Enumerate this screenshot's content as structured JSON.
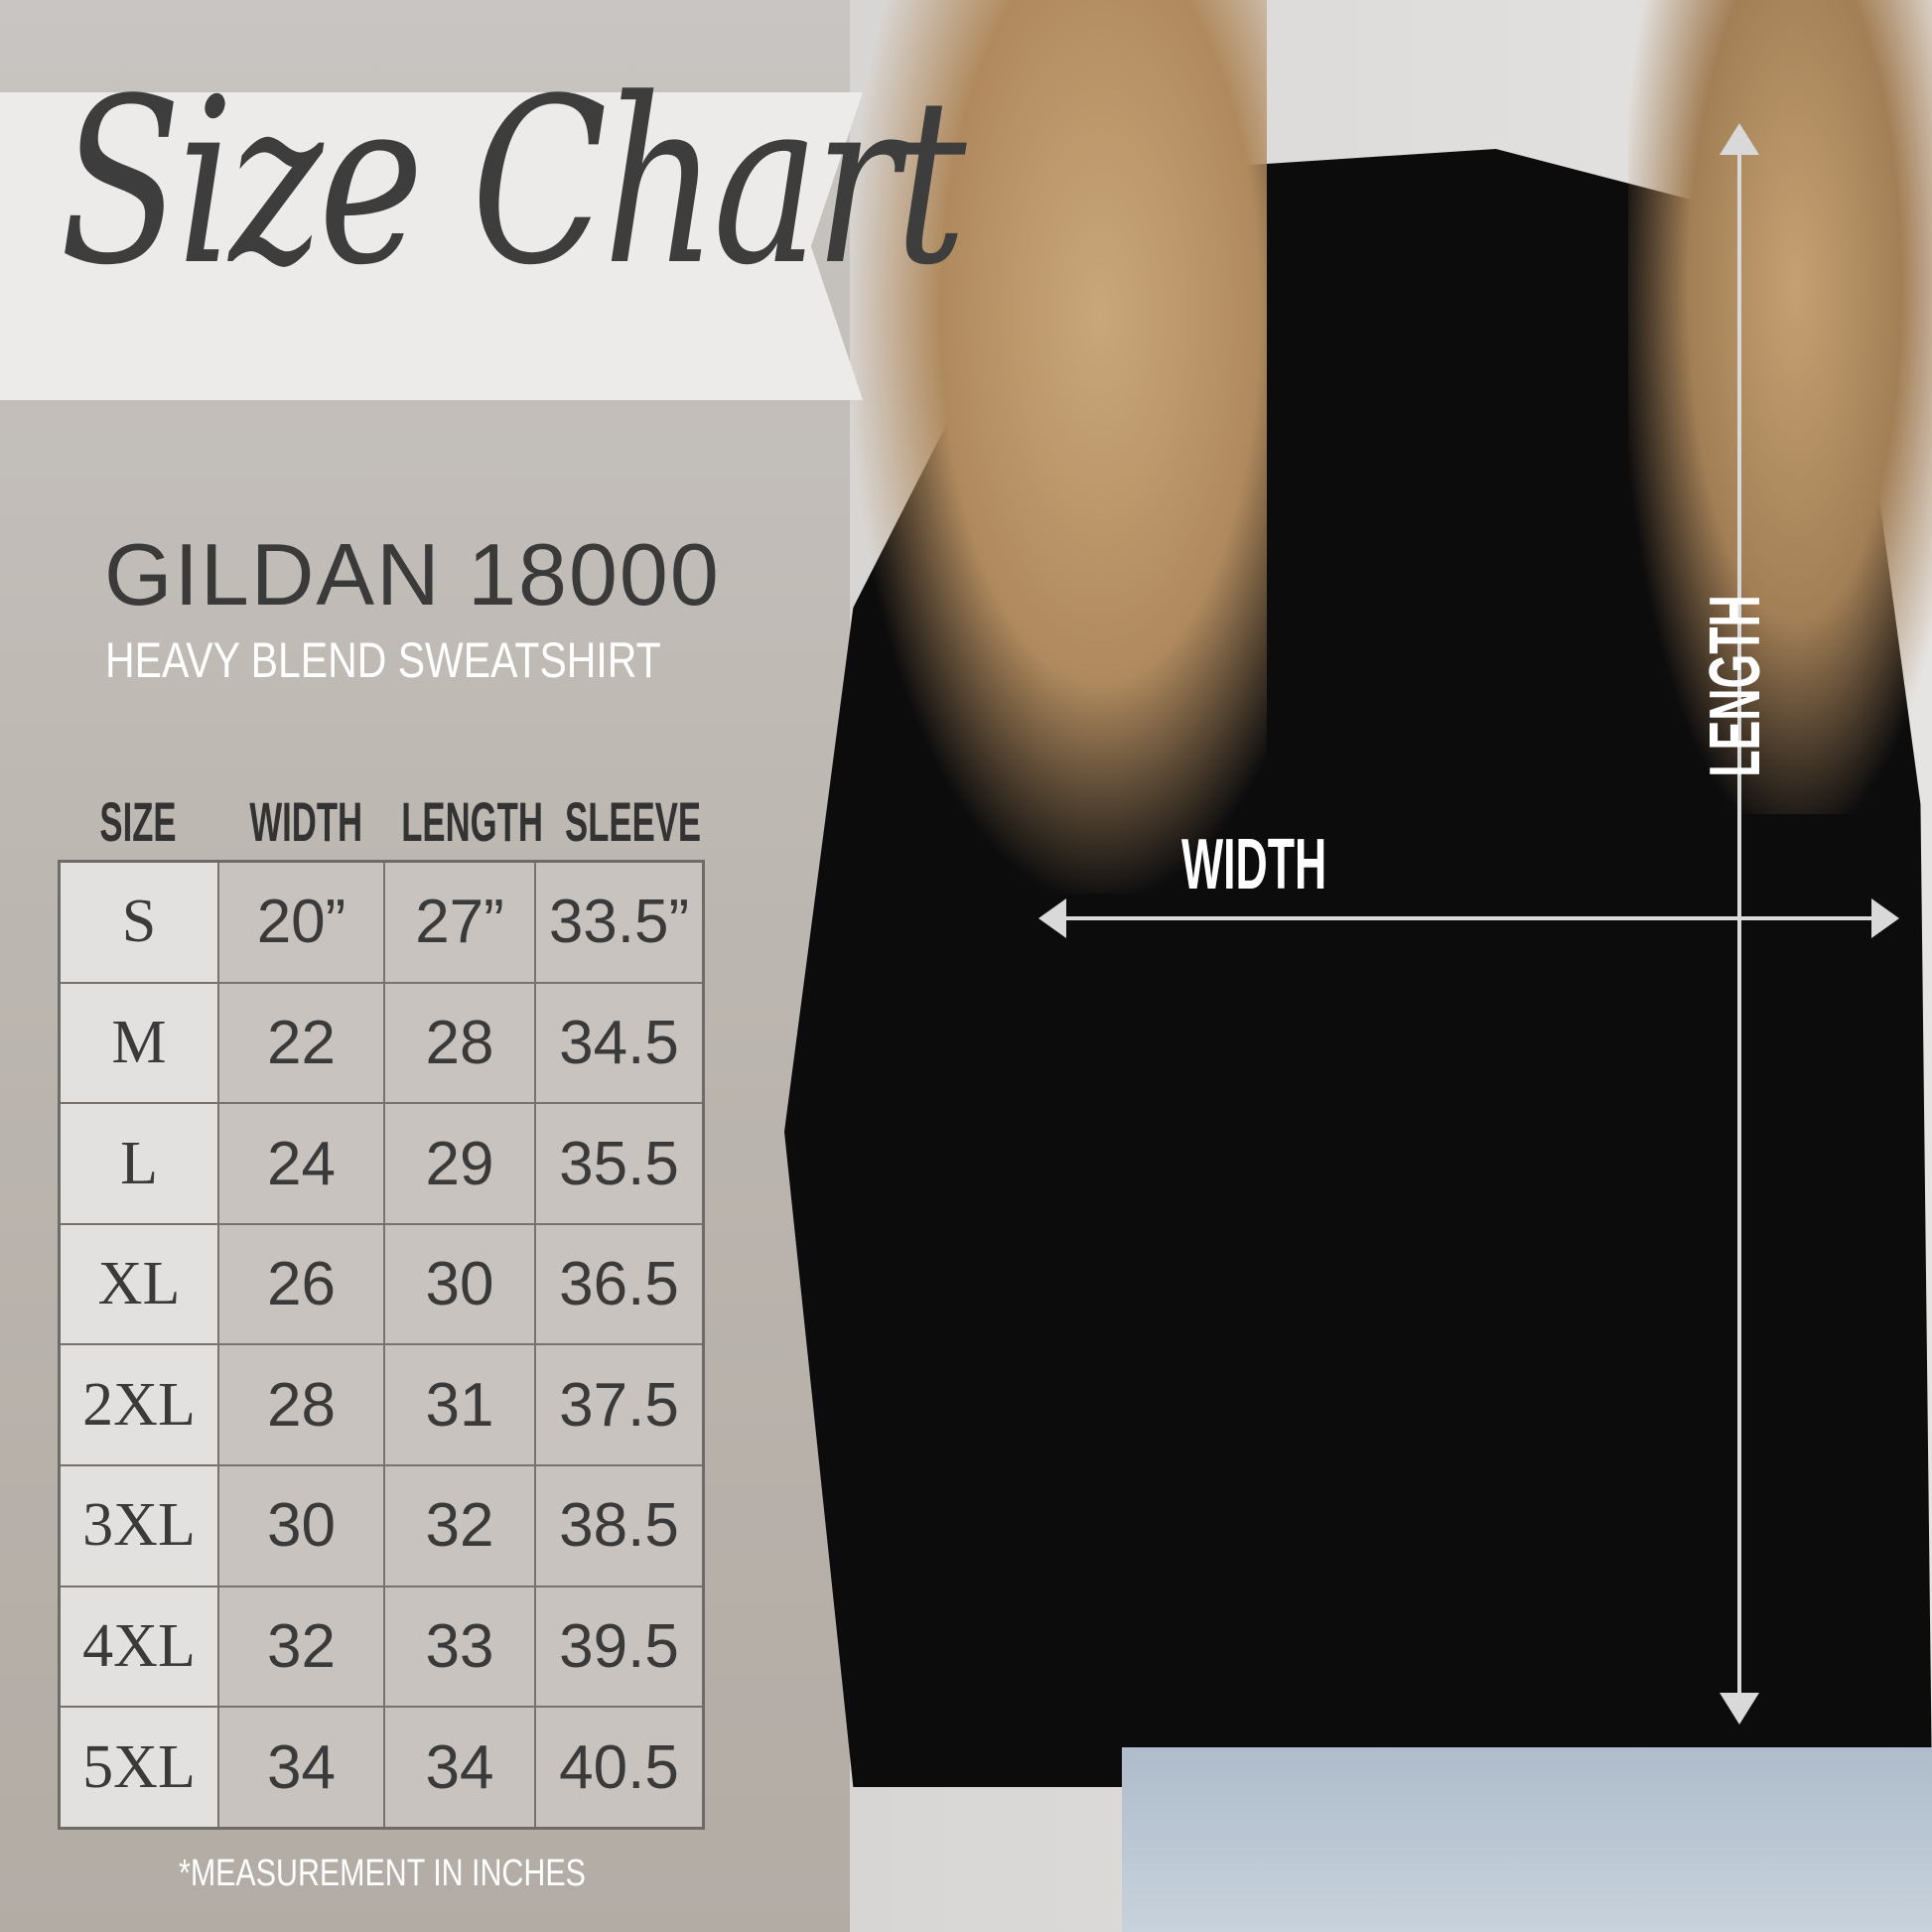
{
  "title": "Size Chart",
  "product": {
    "brand": "GILDAN 18000",
    "subtitle": "HEAVY BLEND SWEATSHIRT"
  },
  "table": {
    "headers": [
      "SIZE",
      "WIDTH",
      "LENGTH",
      "SLEEVE"
    ],
    "rows": [
      [
        "S",
        "20”",
        "27”",
        "33.5”"
      ],
      [
        "M",
        "22",
        "28",
        "34.5"
      ],
      [
        "L",
        "24",
        "29",
        "35.5"
      ],
      [
        "XL",
        "26",
        "30",
        "36.5"
      ],
      [
        "2XL",
        "28",
        "31",
        "37.5"
      ],
      [
        "3XL",
        "30",
        "32",
        "38.5"
      ],
      [
        "4XL",
        "32",
        "33",
        "39.5"
      ],
      [
        "5XL",
        "34",
        "34",
        "40.5"
      ]
    ]
  },
  "footnote": "*MEASUREMENT IN INCHES",
  "photo": {
    "width_label": "WIDTH",
    "length_label": "LENGTH"
  },
  "colors": {
    "shirt": "#0c0c0d",
    "text": "#3a3a3a",
    "banner": "#ecebea"
  }
}
